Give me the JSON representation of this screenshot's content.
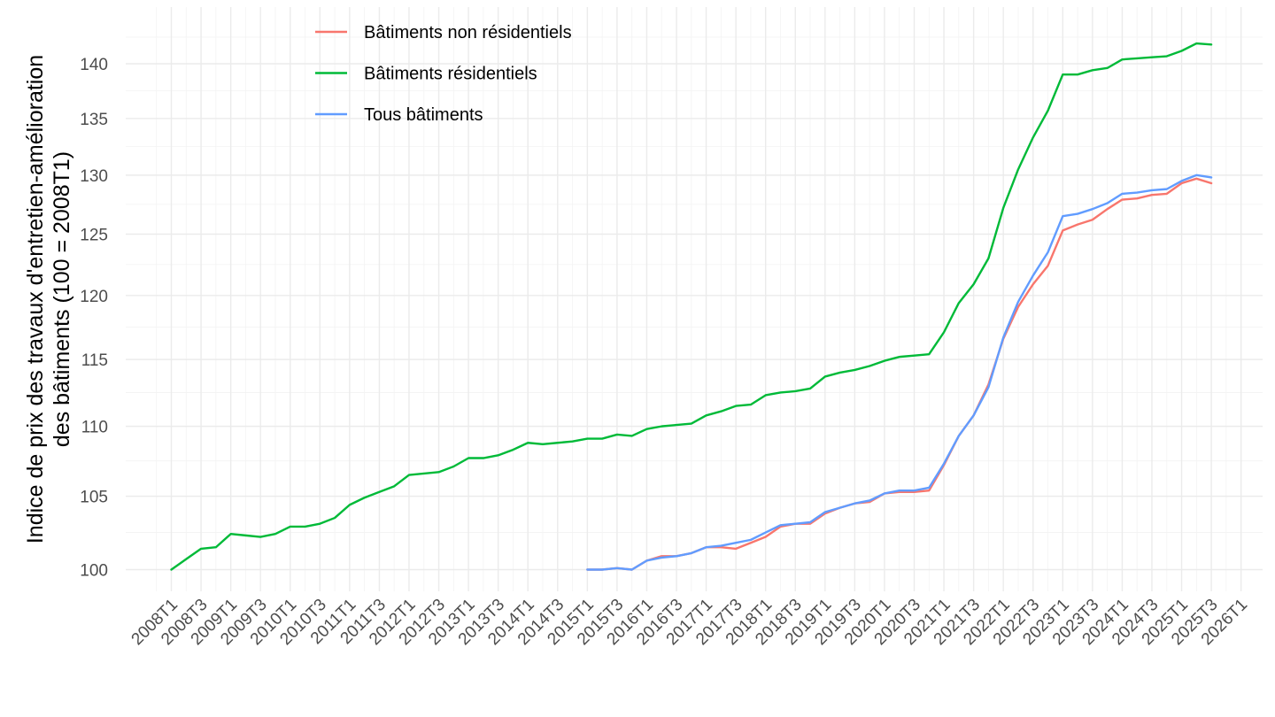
{
  "chart_data": {
    "type": "line",
    "title": "",
    "xlabel": "",
    "ylabel_lines": [
      "Indice de prix des travaux d'entretien-amélioration",
      "des bâtiments (100 = 2008T1)"
    ],
    "x_ticks": [
      "2008T1",
      "2008T3",
      "2009T1",
      "2009T3",
      "2010T1",
      "2010T3",
      "2011T1",
      "2011T3",
      "2012T1",
      "2012T3",
      "2013T1",
      "2013T3",
      "2014T1",
      "2014T3",
      "2015T1",
      "2015T3",
      "2016T1",
      "2016T3",
      "2017T1",
      "2017T3",
      "2018T1",
      "2018T3",
      "2019T1",
      "2019T3",
      "2020T1",
      "2020T3",
      "2021T1",
      "2021T3",
      "2022T1",
      "2022T3",
      "2023T1",
      "2023T3",
      "2024T1",
      "2024T3",
      "2025T1",
      "2025T3",
      "2026T1"
    ],
    "y_ticks": [
      100,
      105,
      110,
      115,
      120,
      125,
      130,
      135,
      140
    ],
    "y_scale": "log",
    "ylim": [
      98.9,
      143.2
    ],
    "grid": true,
    "legend_position": "top-left",
    "series": [
      {
        "name": "Bâtiments non résidentiels",
        "color": "#F8766D",
        "start": "2015T1",
        "values": [
          100.0,
          100.0,
          100.1,
          100.0,
          100.6,
          100.9,
          100.9,
          101.1,
          101.5,
          101.5,
          101.4,
          101.8,
          102.2,
          102.9,
          103.1,
          103.1,
          103.8,
          104.2,
          104.5,
          104.6,
          105.2,
          105.3,
          105.3,
          105.4,
          107.2,
          109.3,
          110.8,
          113.1,
          116.6,
          119.1,
          120.9,
          122.4,
          125.3,
          125.8,
          126.2,
          127.1,
          127.9,
          128.0,
          128.3,
          128.4,
          129.3,
          129.7,
          129.3
        ]
      },
      {
        "name": "Bâtiments résidentiels",
        "color": "#00BA38",
        "start": "2008T1",
        "values": [
          100.0,
          100.7,
          101.4,
          101.5,
          102.4,
          102.3,
          102.2,
          102.4,
          102.9,
          102.9,
          103.1,
          103.5,
          104.4,
          104.9,
          105.3,
          105.7,
          106.5,
          106.6,
          106.7,
          107.1,
          107.7,
          107.7,
          107.9,
          108.3,
          108.8,
          108.7,
          108.8,
          108.9,
          109.1,
          109.1,
          109.4,
          109.3,
          109.8,
          110.0,
          110.1,
          110.2,
          110.8,
          111.1,
          111.5,
          111.6,
          112.3,
          112.5,
          112.6,
          112.8,
          113.7,
          114.0,
          114.2,
          114.5,
          114.9,
          115.2,
          115.3,
          115.4,
          117.1,
          119.4,
          120.9,
          123.0,
          127.2,
          130.5,
          133.3,
          135.7,
          139.0,
          139.0,
          139.4,
          139.6,
          140.4,
          140.5,
          140.6,
          140.7,
          141.2,
          141.9,
          141.8
        ]
      },
      {
        "name": "Tous bâtiments",
        "color": "#619CFF",
        "start": "2015T1",
        "values": [
          100.0,
          100.0,
          100.1,
          100.0,
          100.6,
          100.8,
          100.9,
          101.1,
          101.5,
          101.6,
          101.8,
          102.0,
          102.5,
          103.0,
          103.1,
          103.2,
          103.9,
          104.2,
          104.5,
          104.7,
          105.2,
          105.4,
          105.4,
          105.6,
          107.3,
          109.3,
          110.8,
          112.9,
          116.7,
          119.5,
          121.6,
          123.5,
          126.5,
          126.7,
          127.1,
          127.6,
          128.4,
          128.5,
          128.7,
          128.8,
          129.5,
          130.0,
          129.8
        ]
      }
    ]
  }
}
